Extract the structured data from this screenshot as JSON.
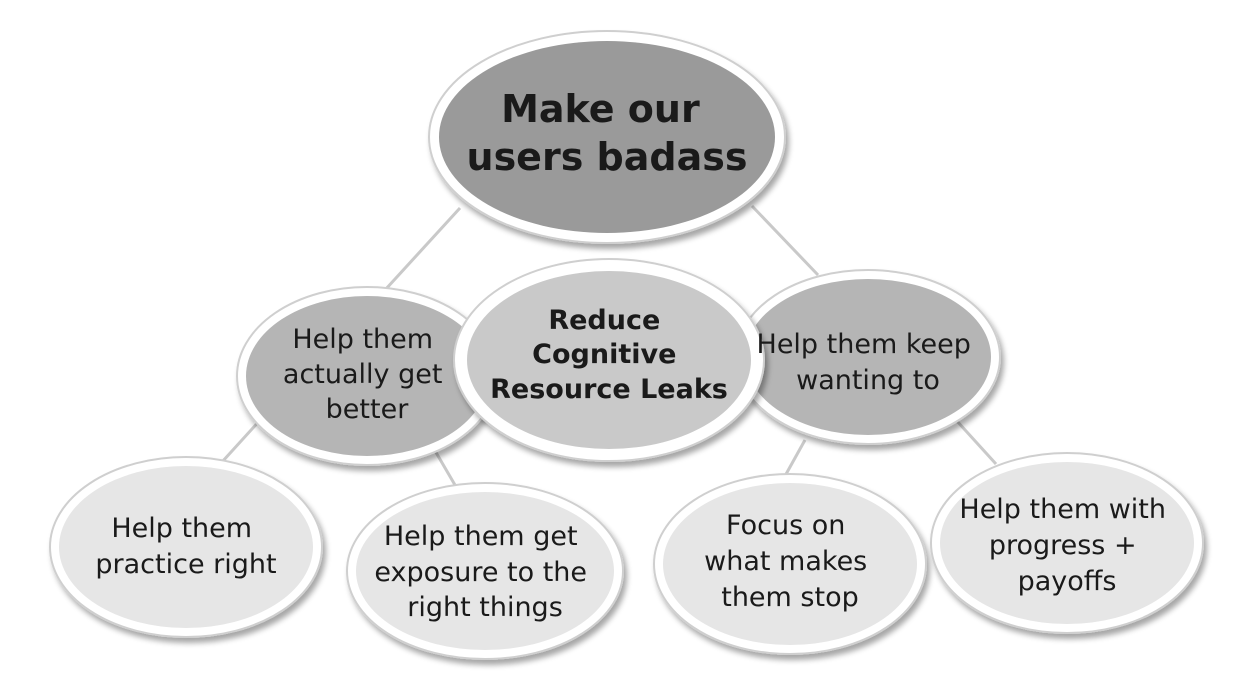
{
  "diagram": {
    "top": {
      "lines": [
        "Make our",
        "users badass"
      ],
      "fill": "#9a9a9a"
    },
    "center": {
      "lines": [
        "Reduce",
        "Cognitive",
        "Resource Leaks"
      ],
      "fill": "#c9c9c9"
    },
    "left_branch": {
      "lines": [
        "Help them",
        "actually get",
        "better"
      ],
      "fill": "#b5b5b5"
    },
    "right_branch": {
      "lines": [
        "Help them keep",
        "wanting to"
      ],
      "fill": "#b5b5b5"
    },
    "leaves": [
      {
        "id": "practice",
        "lines": [
          "Help them",
          "practice right"
        ]
      },
      {
        "id": "exposure",
        "lines": [
          "Help them get",
          "exposure to the",
          "right things"
        ]
      },
      {
        "id": "focus",
        "lines": [
          "Focus on",
          "what makes",
          "them stop"
        ]
      },
      {
        "id": "progress",
        "lines": [
          "Help them with",
          "progress +",
          "payoffs"
        ]
      }
    ],
    "leaf_fill": "#e6e6e6"
  }
}
